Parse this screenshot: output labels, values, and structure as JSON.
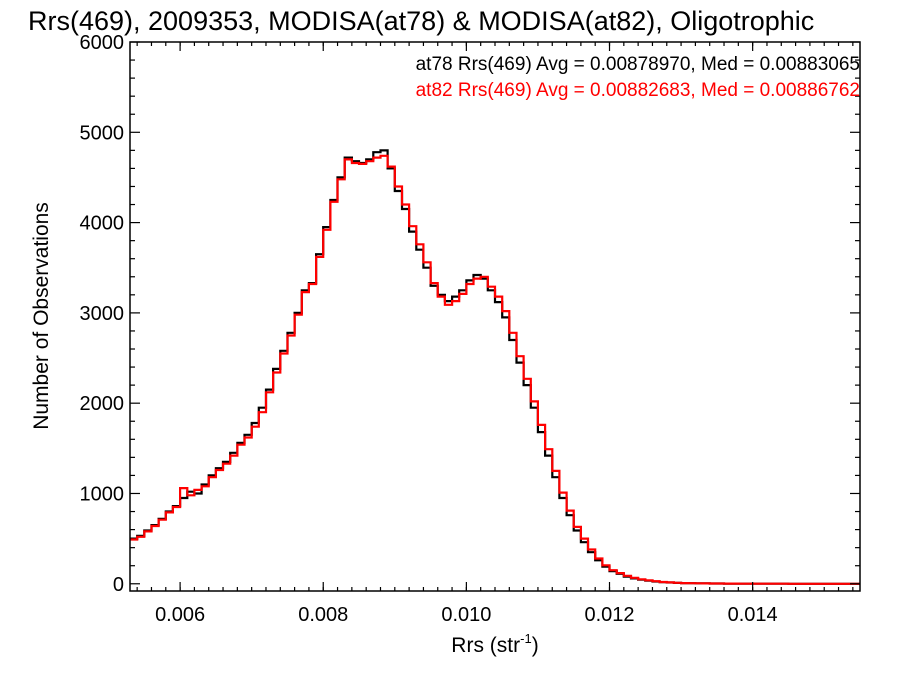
{
  "chart_data": {
    "type": "line",
    "title": "Rrs(469), 2009353, MODISA(at78) & MODISA(at82), Oligotrophic",
    "xlabel": "Rrs (str",
    "xlabel_sup": "-1",
    "xlabel_close": ")",
    "ylabel": "Number of Observations",
    "xlim": [
      0.0053,
      0.0155
    ],
    "ylim": [
      -80,
      6000
    ],
    "x_ticks": [
      0.006,
      0.008,
      0.01,
      0.012,
      0.014
    ],
    "x_tick_labels": [
      "0.006",
      "0.008",
      "0.010",
      "0.012",
      "0.014"
    ],
    "y_ticks": [
      0,
      1000,
      2000,
      3000,
      4000,
      5000,
      6000
    ],
    "y_tick_labels": [
      "0",
      "1000",
      "2000",
      "3000",
      "4000",
      "5000",
      "6000"
    ],
    "grid": false,
    "step": true,
    "annotations": [
      {
        "text": "at78 Rrs(469) Avg = 0.00878970, Med = 0.00883065",
        "color": "#000000"
      },
      {
        "text": "at82 Rrs(469) Avg = 0.00882683, Med = 0.00886762",
        "color": "#ff0000"
      }
    ],
    "series": [
      {
        "color": "#000000",
        "x": [
          0.0053,
          0.0054,
          0.0055,
          0.0056,
          0.0057,
          0.0058,
          0.0059,
          0.006,
          0.0061,
          0.0062,
          0.0063,
          0.0064,
          0.0065,
          0.0066,
          0.0067,
          0.0068,
          0.0069,
          0.007,
          0.0071,
          0.0072,
          0.0073,
          0.0074,
          0.0075,
          0.0076,
          0.0077,
          0.0078,
          0.0079,
          0.008,
          0.0081,
          0.0082,
          0.0083,
          0.0084,
          0.0085,
          0.0086,
          0.0087,
          0.0088,
          0.0089,
          0.009,
          0.0091,
          0.0092,
          0.0093,
          0.0094,
          0.0095,
          0.0096,
          0.0097,
          0.0098,
          0.0099,
          0.01,
          0.0101,
          0.0102,
          0.0103,
          0.0104,
          0.0105,
          0.0106,
          0.0107,
          0.0108,
          0.0109,
          0.011,
          0.0111,
          0.0112,
          0.0113,
          0.0114,
          0.0115,
          0.0116,
          0.0117,
          0.0118,
          0.0119,
          0.012,
          0.0121,
          0.0122,
          0.0123,
          0.0124,
          0.0125,
          0.0126,
          0.0127,
          0.0128,
          0.0129,
          0.013,
          0.0131,
          0.0132,
          0.0133,
          0.0134,
          0.0135,
          0.0136,
          0.0137,
          0.0138,
          0.0139,
          0.014,
          0.0142,
          0.0145,
          0.015,
          0.0155
        ],
        "y": [
          500,
          530,
          590,
          650,
          720,
          800,
          860,
          950,
          1020,
          1000,
          1100,
          1200,
          1280,
          1350,
          1450,
          1560,
          1650,
          1780,
          1950,
          2150,
          2380,
          2580,
          2780,
          3000,
          3250,
          3330,
          3650,
          3950,
          4250,
          4500,
          4720,
          4680,
          4660,
          4700,
          4780,
          4800,
          4600,
          4350,
          4150,
          3900,
          3700,
          3500,
          3300,
          3200,
          3130,
          3180,
          3250,
          3360,
          3420,
          3380,
          3250,
          3120,
          2950,
          2700,
          2450,
          2200,
          1950,
          1680,
          1420,
          1180,
          950,
          760,
          590,
          460,
          350,
          260,
          190,
          140,
          110,
          80,
          60,
          45,
          35,
          25,
          18,
          14,
          10,
          8,
          6,
          5,
          4,
          3,
          3,
          2,
          2,
          1,
          1,
          1,
          1,
          0,
          0,
          0
        ]
      },
      {
        "color": "#ff0000",
        "x": [
          0.0053,
          0.0054,
          0.0055,
          0.0056,
          0.0057,
          0.0058,
          0.0059,
          0.006,
          0.0061,
          0.0062,
          0.0063,
          0.0064,
          0.0065,
          0.0066,
          0.0067,
          0.0068,
          0.0069,
          0.007,
          0.0071,
          0.0072,
          0.0073,
          0.0074,
          0.0075,
          0.0076,
          0.0077,
          0.0078,
          0.0079,
          0.008,
          0.0081,
          0.0082,
          0.0083,
          0.0084,
          0.0085,
          0.0086,
          0.0087,
          0.0088,
          0.0089,
          0.009,
          0.0091,
          0.0092,
          0.0093,
          0.0094,
          0.0095,
          0.0096,
          0.0097,
          0.0098,
          0.0099,
          0.01,
          0.0101,
          0.0102,
          0.0103,
          0.0104,
          0.0105,
          0.0106,
          0.0107,
          0.0108,
          0.0109,
          0.011,
          0.0111,
          0.0112,
          0.0113,
          0.0114,
          0.0115,
          0.0116,
          0.0117,
          0.0118,
          0.0119,
          0.012,
          0.0121,
          0.0122,
          0.0123,
          0.0124,
          0.0125,
          0.0126,
          0.0127,
          0.0128,
          0.0129,
          0.013,
          0.0131,
          0.0132,
          0.0133,
          0.0134,
          0.0135,
          0.0136,
          0.0137,
          0.0138,
          0.0139,
          0.014,
          0.0142,
          0.0145,
          0.015,
          0.0155
        ],
        "y": [
          490,
          520,
          580,
          640,
          710,
          790,
          850,
          1060,
          980,
          1040,
          1080,
          1180,
          1260,
          1330,
          1420,
          1540,
          1620,
          1740,
          1900,
          2120,
          2340,
          2550,
          2750,
          2980,
          3230,
          3320,
          3620,
          3920,
          4230,
          4480,
          4700,
          4660,
          4650,
          4680,
          4720,
          4740,
          4620,
          4400,
          4200,
          3960,
          3760,
          3560,
          3330,
          3180,
          3090,
          3130,
          3210,
          3320,
          3380,
          3400,
          3290,
          3180,
          3020,
          2780,
          2520,
          2270,
          2020,
          1760,
          1490,
          1250,
          1010,
          810,
          630,
          500,
          380,
          280,
          205,
          150,
          118,
          88,
          66,
          50,
          38,
          28,
          20,
          15,
          11,
          8,
          6,
          5,
          4,
          3,
          3,
          2,
          2,
          1,
          1,
          1,
          1,
          0,
          0,
          0
        ]
      }
    ]
  }
}
